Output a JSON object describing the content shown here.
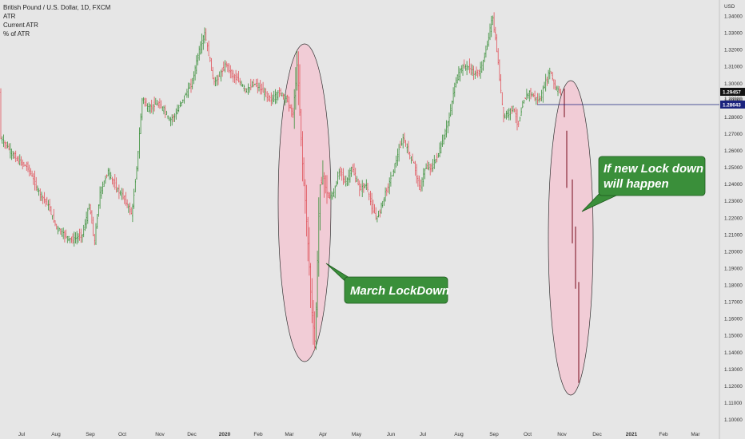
{
  "legend": {
    "symbol_line": "British Pound / U.S. Dollar, 1D, FXCM",
    "indicator_1": "ATR",
    "indicator_2": "Current ATR",
    "indicator_3": "% of ATR"
  },
  "colors": {
    "background": "#e6e6e6",
    "up_bar": "#3a8f3a",
    "down_bar": "#e0525a",
    "ellipse_fill": "#f2c7d2",
    "callout_fill": "#3a8f3a",
    "current_price_tag": "#111111",
    "hline": "#1a237e"
  },
  "annotations": {
    "march_label": "March LockDown",
    "forecast_line_1": "If new Lock down",
    "forecast_line_2": "will happen"
  },
  "chart_data": {
    "type": "ohlc",
    "symbol": "British Pound / U.S. Dollar, 1D, FXCM",
    "y_unit": "USD",
    "ylim": [
      1.1,
      1.345
    ],
    "y_ticks": [
      "1.34000",
      "1.33000",
      "1.32000",
      "1.31000",
      "1.30000",
      "1.29000",
      "1.28000",
      "1.27000",
      "1.26000",
      "1.25000",
      "1.24000",
      "1.23000",
      "1.22000",
      "1.21000",
      "1.20000",
      "1.19000",
      "1.18000",
      "1.17000",
      "1.16000",
      "1.15000",
      "1.14000",
      "1.13000",
      "1.12000",
      "1.11000",
      "1.10000"
    ],
    "x_ticks": [
      "Jul",
      "Aug",
      "Sep",
      "Oct",
      "Nov",
      "Dec",
      "2020",
      "Feb",
      "Mar",
      "Apr",
      "May",
      "Jun",
      "Jul",
      "Aug",
      "Sep",
      "Oct",
      "Nov",
      "Dec",
      "2021",
      "Feb",
      "Mar"
    ],
    "current_price": "1.29457",
    "hline_price": "1.28643",
    "secondary_price": "1.28980",
    "key_levels": [
      {
        "date": "2019-07",
        "close": 1.262
      },
      {
        "date": "2019-08",
        "close": 1.214
      },
      {
        "date": "2019-09-03",
        "low": 1.196
      },
      {
        "date": "2019-10",
        "close": 1.285
      },
      {
        "date": "2019-12-13",
        "high": 1.351
      },
      {
        "date": "2020-03-20",
        "low": 1.143
      },
      {
        "date": "2020-06",
        "close": 1.245
      },
      {
        "date": "2020-09-01",
        "high": 1.348
      },
      {
        "date": "2020-10",
        "close": 1.295
      }
    ],
    "projection": [
      {
        "date": "2020-11-01",
        "value": 1.297
      },
      {
        "date": "2020-11-15",
        "value": 1.24
      },
      {
        "date": "2020-11-28",
        "value": 1.185
      },
      {
        "date": "2020-12-10",
        "value": 1.125
      }
    ]
  }
}
